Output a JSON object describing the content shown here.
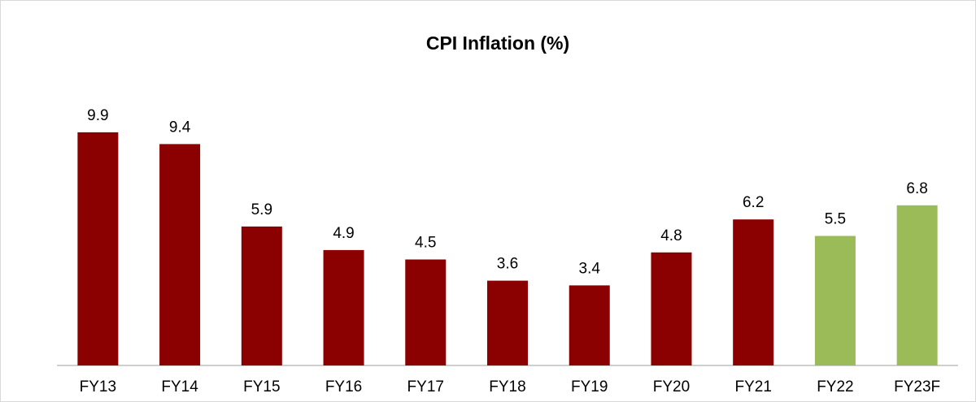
{
  "chart_data": {
    "type": "bar",
    "title": "CPI Inflation (%)",
    "categories": [
      "FY13",
      "FY14",
      "FY15",
      "FY16",
      "FY17",
      "FY18",
      "FY19",
      "FY20",
      "FY21",
      "FY22",
      "FY23F"
    ],
    "values": [
      9.9,
      9.4,
      5.9,
      4.9,
      4.5,
      3.6,
      3.4,
      4.8,
      6.2,
      5.5,
      6.8
    ],
    "colors": [
      "#8b0000",
      "#8b0000",
      "#8b0000",
      "#8b0000",
      "#8b0000",
      "#8b0000",
      "#8b0000",
      "#8b0000",
      "#8b0000",
      "#9bbb59",
      "#9bbb59"
    ]
  }
}
